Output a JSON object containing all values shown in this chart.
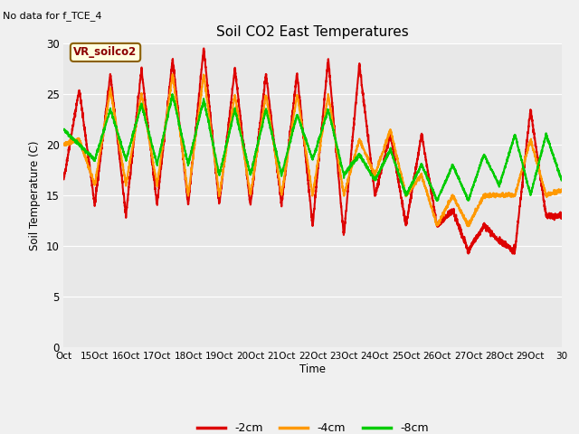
{
  "title": "Soil CO2 East Temperatures",
  "no_data_text": "No data for f_TCE_4",
  "vr_label": "VR_soilco2",
  "ylabel": "Soil Temperature (C)",
  "xlabel": "Time",
  "ylim": [
    0,
    30
  ],
  "yticks": [
    0,
    5,
    10,
    15,
    20,
    25,
    30
  ],
  "xtick_labels": [
    "Oct",
    "15Oct",
    "16Oct",
    "17Oct",
    "18Oct",
    "19Oct",
    "20Oct",
    "21Oct",
    "22Oct",
    "23Oct",
    "24Oct",
    "25Oct",
    "26Oct",
    "27Oct",
    "28Oct",
    "29Oct",
    "30"
  ],
  "colors": {
    "2cm": "#dd0000",
    "4cm": "#ff9900",
    "8cm": "#00cc00"
  },
  "legend": [
    "-2cm",
    "-4cm",
    "-8cm"
  ],
  "bg_color": "#e8e8e8",
  "fig_bg": "#f0f0f0",
  "line_width": 1.5,
  "grid_color": "#ffffff"
}
